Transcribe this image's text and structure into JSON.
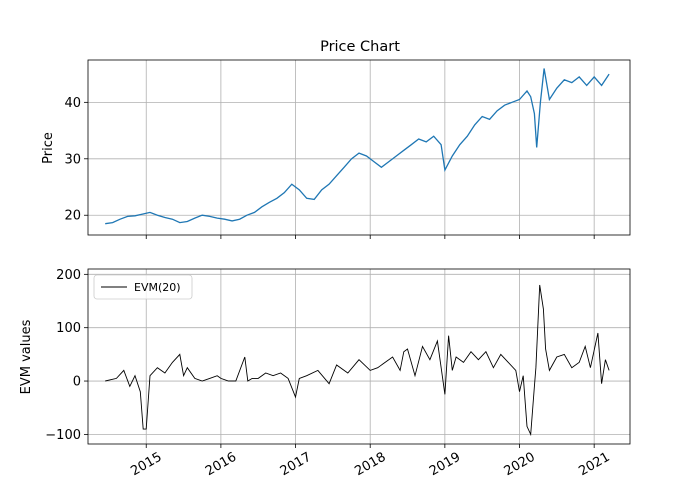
{
  "chart_data": [
    {
      "type": "line",
      "title": "Price Chart",
      "xlabel": "",
      "ylabel": "Price",
      "ylim": [
        16.5,
        47.5
      ],
      "yticks": [
        20,
        30,
        40
      ],
      "xlim": [
        2014.22,
        2021.48
      ],
      "grid": true,
      "series": [
        {
          "name": "",
          "color": "#1f77b4",
          "x": [
            2014.45,
            2014.55,
            2014.65,
            2014.75,
            2014.85,
            2014.95,
            2015.05,
            2015.15,
            2015.25,
            2015.35,
            2015.45,
            2015.55,
            2015.65,
            2015.75,
            2015.85,
            2015.95,
            2016.05,
            2016.15,
            2016.25,
            2016.35,
            2016.45,
            2016.55,
            2016.65,
            2016.75,
            2016.85,
            2016.95,
            2017.05,
            2017.15,
            2017.25,
            2017.35,
            2017.45,
            2017.55,
            2017.65,
            2017.75,
            2017.85,
            2017.95,
            2018.05,
            2018.15,
            2018.25,
            2018.35,
            2018.45,
            2018.55,
            2018.65,
            2018.75,
            2018.85,
            2018.95,
            2019.0,
            2019.1,
            2019.2,
            2019.3,
            2019.4,
            2019.5,
            2019.6,
            2019.7,
            2019.8,
            2019.9,
            2020.0,
            2020.1,
            2020.15,
            2020.2,
            2020.23,
            2020.28,
            2020.33,
            2020.4,
            2020.5,
            2020.6,
            2020.7,
            2020.8,
            2020.9,
            2021.0,
            2021.1,
            2021.2
          ],
          "values": [
            18.5,
            18.7,
            19.3,
            19.8,
            19.9,
            20.2,
            20.5,
            20.0,
            19.6,
            19.3,
            18.7,
            18.9,
            19.5,
            20.0,
            19.8,
            19.5,
            19.3,
            19.0,
            19.3,
            20.0,
            20.5,
            21.5,
            22.3,
            23.0,
            24.0,
            25.5,
            24.5,
            23.0,
            22.8,
            24.5,
            25.5,
            27.0,
            28.5,
            30.0,
            31.0,
            30.5,
            29.5,
            28.5,
            29.5,
            30.5,
            31.5,
            32.5,
            33.5,
            33.0,
            34.0,
            32.5,
            28.0,
            30.5,
            32.5,
            34.0,
            36.0,
            37.5,
            37.0,
            38.5,
            39.5,
            40.0,
            40.5,
            42.0,
            41.0,
            38.0,
            32.0,
            40.0,
            46.0,
            40.5,
            42.5,
            44.0,
            43.5,
            44.5,
            43.0,
            44.5,
            43.0,
            45.0
          ]
        }
      ]
    },
    {
      "type": "line",
      "title": "",
      "xlabel": "",
      "ylabel": "EVM values",
      "ylim": [
        -118,
        210
      ],
      "yticks": [
        -100,
        0,
        100,
        200
      ],
      "xlim": [
        2014.22,
        2021.48
      ],
      "xticks": [
        "2015",
        "2016",
        "2017",
        "2018",
        "2019",
        "2020",
        "2021"
      ],
      "grid": true,
      "legend_placement": "upper-left",
      "series": [
        {
          "name": "EVM(20)",
          "color": "#000000",
          "x": [
            2014.45,
            2014.6,
            2014.7,
            2014.78,
            2014.85,
            2014.92,
            2014.96,
            2015.0,
            2015.05,
            2015.15,
            2015.25,
            2015.35,
            2015.45,
            2015.5,
            2015.55,
            2015.65,
            2015.75,
            2015.85,
            2015.95,
            2016.0,
            2016.1,
            2016.2,
            2016.32,
            2016.36,
            2016.42,
            2016.5,
            2016.6,
            2016.7,
            2016.8,
            2016.9,
            2017.0,
            2017.05,
            2017.15,
            2017.3,
            2017.45,
            2017.55,
            2017.7,
            2017.85,
            2018.0,
            2018.1,
            2018.2,
            2018.3,
            2018.4,
            2018.45,
            2018.5,
            2018.6,
            2018.7,
            2018.8,
            2018.9,
            2019.0,
            2019.05,
            2019.1,
            2019.15,
            2019.25,
            2019.35,
            2019.45,
            2019.55,
            2019.65,
            2019.75,
            2019.85,
            2019.95,
            2020.0,
            2020.05,
            2020.1,
            2020.15,
            2020.2,
            2020.22,
            2020.27,
            2020.32,
            2020.35,
            2020.4,
            2020.5,
            2020.6,
            2020.7,
            2020.8,
            2020.88,
            2020.95,
            2021.05,
            2021.1,
            2021.15,
            2021.2
          ],
          "values": [
            0,
            5,
            20,
            -10,
            10,
            -20,
            -90,
            -90,
            10,
            25,
            15,
            35,
            50,
            10,
            25,
            5,
            0,
            5,
            10,
            5,
            0,
            0,
            45,
            0,
            5,
            5,
            15,
            10,
            15,
            5,
            -30,
            5,
            10,
            20,
            -5,
            30,
            15,
            40,
            20,
            25,
            35,
            45,
            20,
            55,
            60,
            10,
            65,
            40,
            75,
            -25,
            85,
            20,
            45,
            35,
            55,
            40,
            55,
            25,
            50,
            35,
            20,
            -20,
            10,
            -85,
            -100,
            -10,
            25,
            180,
            135,
            60,
            20,
            45,
            50,
            25,
            35,
            65,
            25,
            90,
            -5,
            40,
            20
          ]
        }
      ]
    }
  ]
}
